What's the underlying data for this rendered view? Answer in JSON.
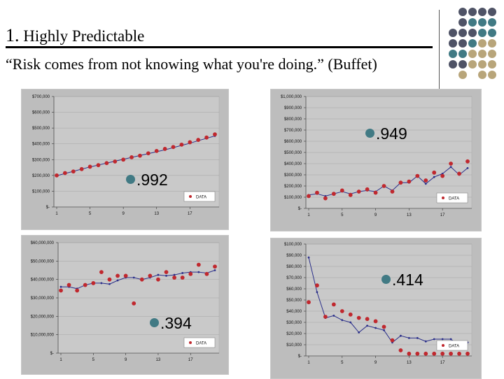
{
  "slide": {
    "title_num": "1.",
    "title_text": "Highly Predictable",
    "quote": "“Risk comes from not knowing what you're doing.” (Buffet)"
  },
  "colors": {
    "data_dot": "#c0282e",
    "fit_line": "#2b2f8a",
    "bullet": "#417a84",
    "dot_palette": [
      "#4f5366",
      "#417a84",
      "#b8a57a"
    ]
  },
  "annotations": [
    ".992",
    ".949",
    ".394",
    ".414"
  ],
  "chart_data": [
    {
      "type": "scatter",
      "title": "",
      "xlabel": "",
      "ylabel": "",
      "ylim": [
        0,
        700000
      ],
      "yticks": [
        0,
        100000,
        200000,
        300000,
        400000,
        500000,
        600000,
        700000
      ],
      "ytick_labels": [
        "$-",
        "$100,000",
        "$200,000",
        "$300,000",
        "$400,000",
        "$500,000",
        "$600,000",
        "$700,000"
      ],
      "xlim": [
        1,
        20
      ],
      "xticks": [
        1,
        5,
        9,
        13,
        17
      ],
      "xtick_labels": [
        "1",
        "5",
        "9",
        "13",
        "17"
      ],
      "legend": "DATA",
      "series": [
        {
          "name": "DATA",
          "x": [
            1,
            2,
            3,
            4,
            5,
            6,
            7,
            8,
            9,
            10,
            11,
            12,
            13,
            14,
            15,
            16,
            17,
            18,
            19,
            20
          ],
          "values": [
            200000,
            215000,
            225000,
            240000,
            255000,
            265000,
            278000,
            288000,
            300000,
            315000,
            325000,
            340000,
            355000,
            368000,
            380000,
            395000,
            410000,
            425000,
            440000,
            460000
          ]
        },
        {
          "name": "fit",
          "x": [
            1,
            2,
            3,
            4,
            5,
            6,
            7,
            8,
            9,
            10,
            11,
            12,
            13,
            14,
            15,
            16,
            17,
            18,
            19,
            20
          ],
          "values": [
            198000,
            212000,
            226000,
            240000,
            254000,
            266000,
            278000,
            290000,
            302000,
            314000,
            326000,
            338000,
            350000,
            362000,
            376000,
            390000,
            404000,
            420000,
            435000,
            450000
          ]
        }
      ]
    },
    {
      "type": "scatter",
      "title": "",
      "xlabel": "",
      "ylabel": "",
      "ylim": [
        0,
        1000000
      ],
      "yticks": [
        0,
        100000,
        200000,
        300000,
        400000,
        500000,
        600000,
        700000,
        800000,
        900000,
        1000000
      ],
      "ytick_labels": [
        "$-",
        "$100,000",
        "$200,000",
        "$300,000",
        "$400,000",
        "$500,000",
        "$600,000",
        "$700,000",
        "$800,000",
        "$900,000",
        "$1,000,000"
      ],
      "xlim": [
        1,
        20
      ],
      "xticks": [
        1,
        5,
        9,
        13,
        17
      ],
      "xtick_labels": [
        "1",
        "5",
        "9",
        "13",
        "17"
      ],
      "legend": "DATA",
      "series": [
        {
          "name": "DATA",
          "x": [
            1,
            2,
            3,
            4,
            5,
            6,
            7,
            8,
            9,
            10,
            11,
            12,
            13,
            14,
            15,
            16,
            17,
            18,
            19,
            20
          ],
          "values": [
            110000,
            140000,
            90000,
            130000,
            160000,
            120000,
            150000,
            170000,
            140000,
            200000,
            150000,
            230000,
            240000,
            290000,
            250000,
            320000,
            290000,
            400000,
            310000,
            420000
          ]
        },
        {
          "name": "fit",
          "x": [
            1,
            2,
            3,
            4,
            5,
            6,
            7,
            8,
            9,
            10,
            11,
            12,
            13,
            14,
            15,
            16,
            17,
            18,
            19,
            20
          ],
          "values": [
            120000,
            130000,
            110000,
            130000,
            150000,
            130000,
            150000,
            160000,
            150000,
            200000,
            160000,
            230000,
            230000,
            290000,
            220000,
            280000,
            310000,
            370000,
            300000,
            360000
          ]
        }
      ]
    },
    {
      "type": "scatter",
      "title": "",
      "xlabel": "",
      "ylabel": "",
      "ylim": [
        0,
        60000000
      ],
      "yticks": [
        0,
        10000000,
        20000000,
        30000000,
        40000000,
        50000000,
        60000000
      ],
      "ytick_labels": [
        "$-",
        "$10,000,000",
        "$20,000,000",
        "$30,000,000",
        "$40,000,000",
        "$50,000,000",
        "$60,000,000"
      ],
      "xlim": [
        1,
        20
      ],
      "xticks": [
        1,
        5,
        9,
        13,
        17
      ],
      "xtick_labels": [
        "1",
        "5",
        "9",
        "13",
        "17"
      ],
      "legend": "DATA",
      "series": [
        {
          "name": "DATA",
          "x": [
            1,
            2,
            3,
            4,
            5,
            6,
            7,
            8,
            9,
            10,
            11,
            12,
            13,
            14,
            15,
            16,
            17,
            18,
            19,
            20
          ],
          "values": [
            34000000,
            37000000,
            34000000,
            37000000,
            38000000,
            44000000,
            40000000,
            42000000,
            42000000,
            27000000,
            40000000,
            42000000,
            40000000,
            44000000,
            41000000,
            41000000,
            43000000,
            48000000,
            43000000,
            47000000
          ]
        },
        {
          "name": "fit",
          "x": [
            1,
            2,
            3,
            4,
            5,
            6,
            7,
            8,
            9,
            10,
            11,
            12,
            13,
            14,
            15,
            16,
            17,
            18,
            19,
            20
          ],
          "values": [
            36000000,
            36000000,
            35000000,
            37000000,
            38000000,
            38000000,
            37500000,
            39500000,
            41000000,
            41000000,
            40000000,
            41000000,
            42500000,
            42000000,
            42500000,
            43500000,
            44000000,
            44000000,
            43500000,
            45000000
          ]
        }
      ]
    },
    {
      "type": "scatter",
      "title": "",
      "xlabel": "",
      "ylabel": "",
      "ylim": [
        0,
        100000
      ],
      "yticks": [
        0,
        10000,
        20000,
        30000,
        40000,
        50000,
        60000,
        70000,
        80000,
        90000,
        100000
      ],
      "ytick_labels": [
        "$-",
        "$10,000",
        "$20,000",
        "$30,000",
        "$40,000",
        "$50,000",
        "$60,000",
        "$70,000",
        "$80,000",
        "$90,000",
        "$100,000"
      ],
      "xlim": [
        1,
        20
      ],
      "xticks": [
        1,
        5,
        9,
        13,
        17
      ],
      "xtick_labels": [
        "1",
        "5",
        "9",
        "13",
        "17"
      ],
      "legend": "DATA",
      "series": [
        {
          "name": "DATA",
          "x": [
            1,
            2,
            3,
            4,
            5,
            6,
            7,
            8,
            9,
            10,
            11,
            12,
            13,
            14,
            15,
            16,
            17,
            18,
            19,
            20
          ],
          "values": [
            48000,
            63000,
            35000,
            46000,
            40000,
            37000,
            34000,
            33000,
            31000,
            26000,
            14000,
            5000,
            2000,
            2000,
            2000,
            2000,
            2000,
            2000,
            2000,
            2000
          ]
        },
        {
          "name": "fit",
          "x": [
            1,
            2,
            3,
            4,
            5,
            6,
            7,
            8,
            9,
            10,
            11,
            12,
            13,
            14,
            15,
            16,
            17,
            18,
            19,
            20
          ],
          "values": [
            88000,
            57000,
            34000,
            36000,
            32000,
            30000,
            21000,
            27000,
            25000,
            23000,
            12000,
            18000,
            16000,
            16000,
            13000,
            15000,
            15000,
            15000,
            9000,
            12000
          ]
        }
      ]
    }
  ]
}
